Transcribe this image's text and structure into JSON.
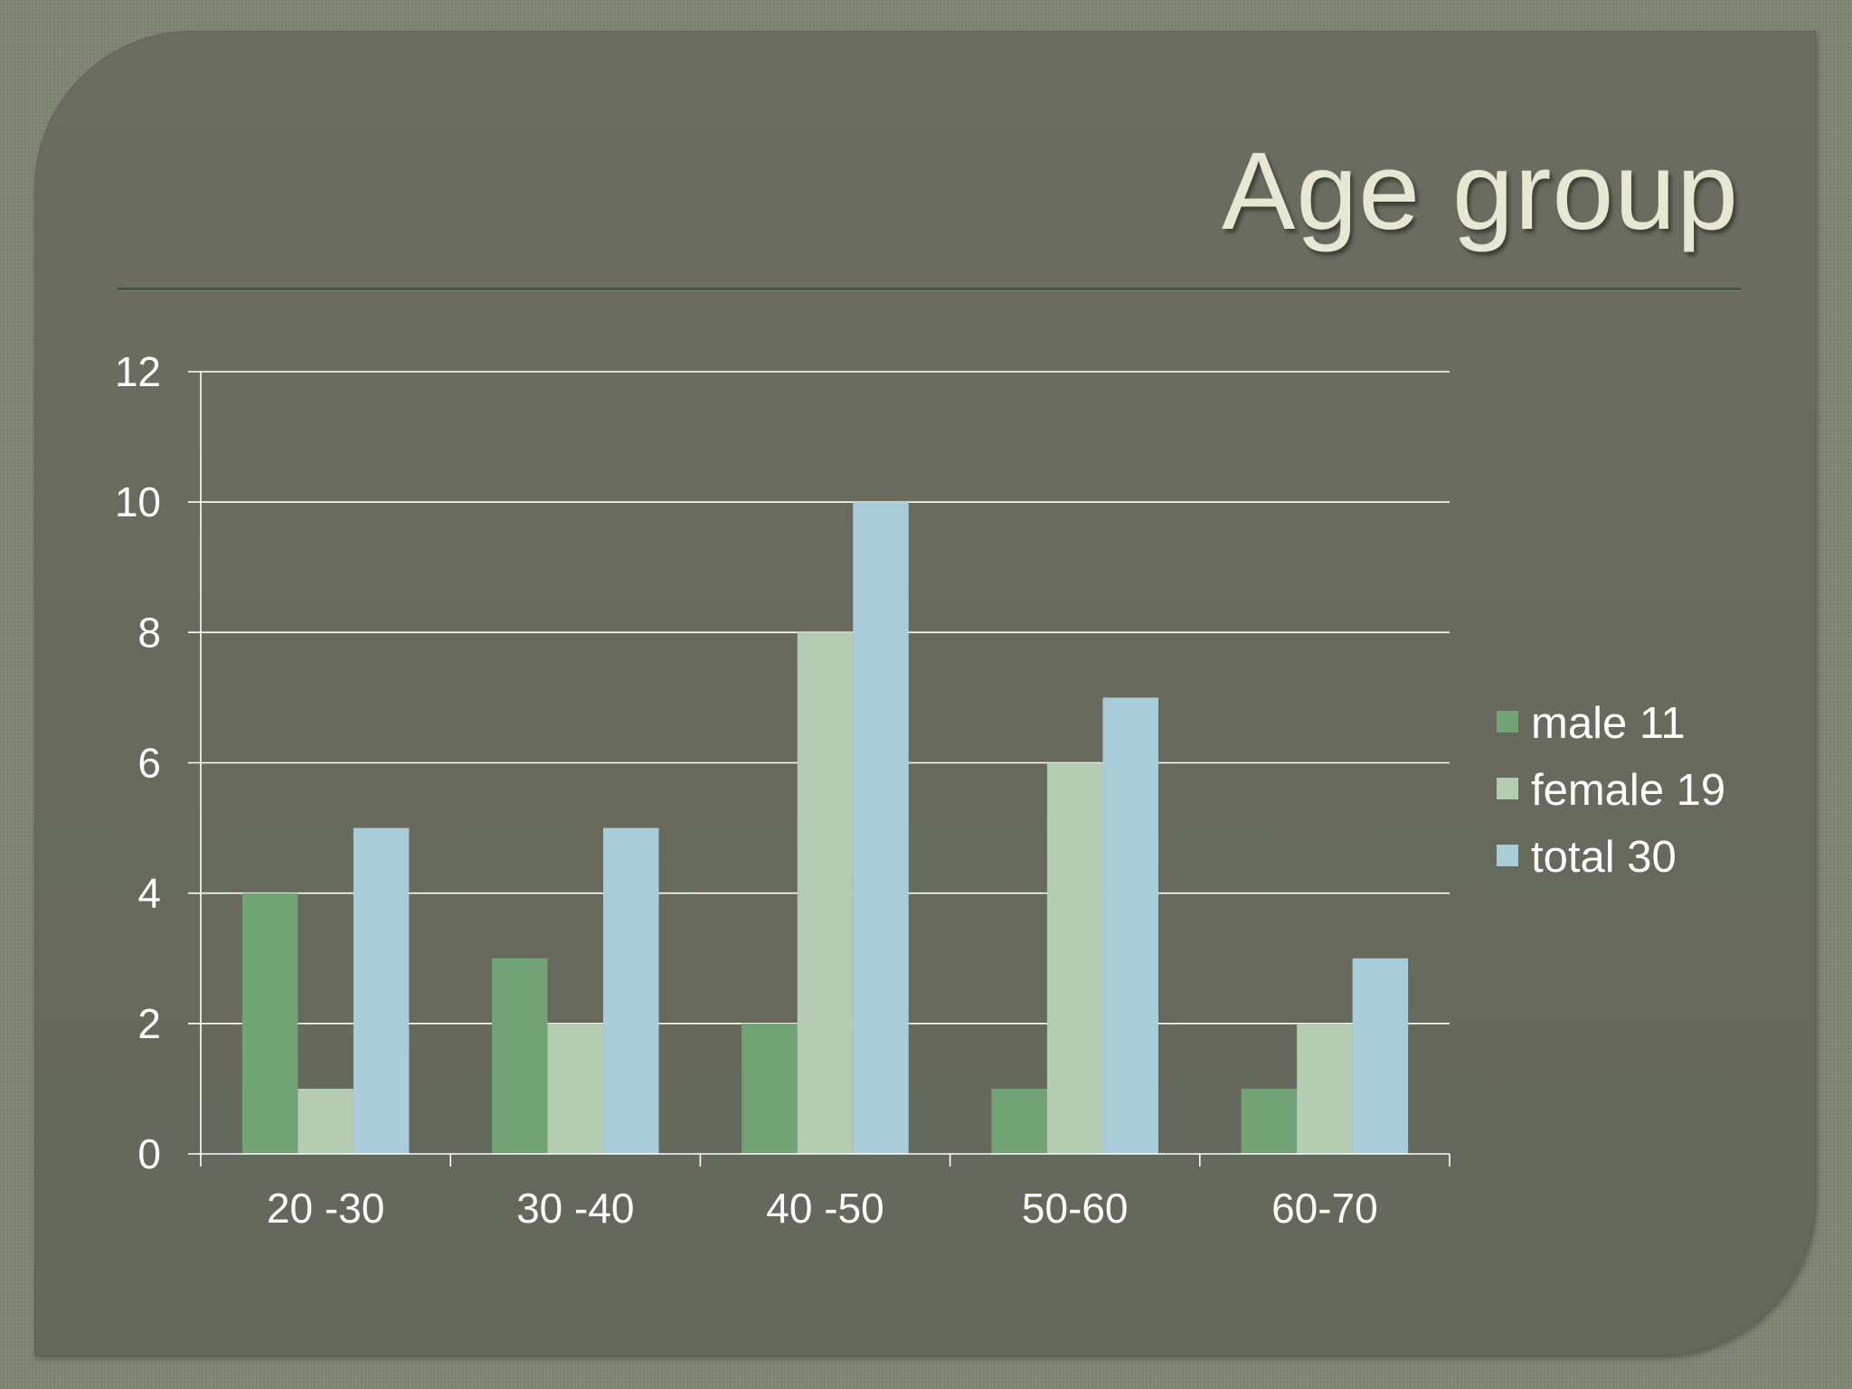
{
  "slide": {
    "title": "Age group"
  },
  "chart_data": {
    "type": "bar",
    "title": "Age group",
    "xlabel": "",
    "ylabel": "",
    "categories": [
      "20 -30",
      "30 -40",
      "40 -50",
      "50-60",
      "60-70"
    ],
    "series": [
      {
        "name": "male 11",
        "values": [
          4,
          3,
          2,
          1,
          1
        ],
        "color": "#72a374"
      },
      {
        "name": "female 19",
        "values": [
          1,
          2,
          8,
          6,
          2
        ],
        "color": "#b4cdb2"
      },
      {
        "name": "total 30",
        "values": [
          5,
          5,
          10,
          7,
          3
        ],
        "color": "#a9cdd8"
      }
    ],
    "ylim": [
      0,
      12
    ],
    "yticks": [
      0,
      2,
      4,
      6,
      8,
      10,
      12
    ],
    "grid": true,
    "legend_position": "right"
  },
  "colors": {
    "background": "#7f8474",
    "panel": "#686b5e",
    "title": "#e6e8d2",
    "rule": "#3e5a3a",
    "gridline": "#ffffff",
    "text": "#ffffff"
  }
}
